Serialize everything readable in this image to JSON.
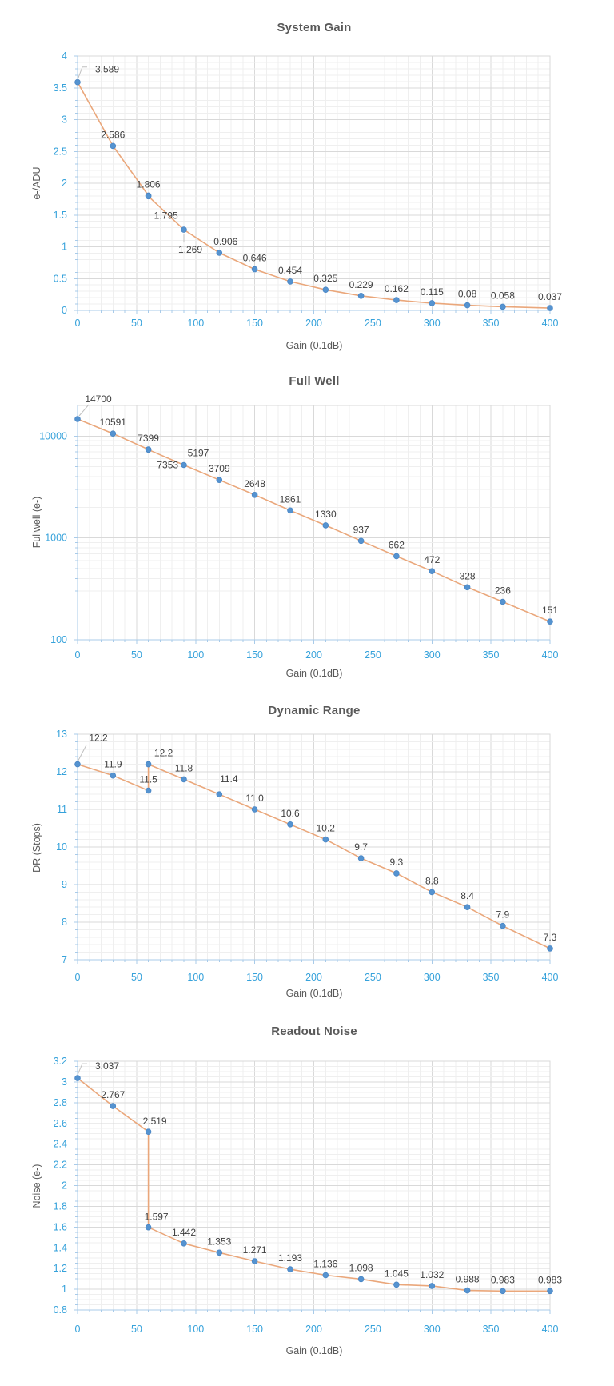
{
  "style": {
    "background": "#FFFFFF",
    "title_color": "#595959",
    "axis_title_color": "#595959",
    "tick_label_color": "#36A2DB",
    "data_label_color": "#404040",
    "line_color": "#EAA77B",
    "marker_color": "#5593D0",
    "marker_edge_color": "#4A86C5",
    "axis_line_color": "#A9CBE9",
    "major_grid_color": "#D9D9D9",
    "minor_grid_color": "#EFEFEF",
    "leader_line_color": "#BFBFBF"
  },
  "chart_data": [
    {
      "type": "line",
      "title": "System Gain",
      "xlabel": "Gain (0.1dB)",
      "ylabel": "e-/ADU",
      "x": [
        0,
        30,
        60,
        60,
        90,
        120,
        150,
        180,
        210,
        240,
        270,
        300,
        330,
        360,
        400
      ],
      "y": [
        3.589,
        2.586,
        1.806,
        1.795,
        1.269,
        0.906,
        0.646,
        0.454,
        0.325,
        0.229,
        0.162,
        0.115,
        0.08,
        0.058,
        0.037
      ],
      "point_labels": [
        "3.589",
        "2.586",
        "1.806",
        "1.795",
        "1.269",
        "0.906",
        "0.646",
        "0.454",
        "0.325",
        "0.229",
        "0.162",
        "0.115",
        "0.08",
        "0.058",
        "0.037"
      ],
      "xlim": [
        0,
        400
      ],
      "xtick_labels": [
        "0",
        "50",
        "100",
        "150",
        "200",
        "250",
        "300",
        "350",
        "400"
      ],
      "yscale": "linear",
      "ylim": [
        0,
        4
      ],
      "ytick_values": [
        0,
        0.5,
        1,
        1.5,
        2,
        2.5,
        3,
        3.5,
        4
      ],
      "ytick_labels": [
        "0",
        "0.5",
        "1",
        "1.5",
        "2",
        "2.5",
        "3",
        "3.5",
        "4"
      ],
      "minor_x_step": 10,
      "minor_y_step": 0.1,
      "grid": true,
      "legend": false,
      "markers": true
    },
    {
      "type": "line",
      "title": "Full Well",
      "xlabel": "Gain (0.1dB)",
      "ylabel": "Fullwell (e-)",
      "x": [
        0,
        30,
        60,
        60,
        90,
        120,
        150,
        180,
        210,
        240,
        270,
        300,
        330,
        360,
        400
      ],
      "y": [
        14700,
        10591,
        7399,
        7353,
        5197,
        3709,
        2648,
        1861,
        1330,
        937,
        662,
        472,
        328,
        236,
        151
      ],
      "point_labels": [
        "14700",
        "10591",
        "7399",
        "7353",
        "5197",
        "3709",
        "2648",
        "1861",
        "1330",
        "937",
        "662",
        "472",
        "328",
        "236",
        "151"
      ],
      "xlim": [
        0,
        400
      ],
      "xtick_labels": [
        "0",
        "50",
        "100",
        "150",
        "200",
        "250",
        "300",
        "350",
        "400"
      ],
      "yscale": "log",
      "ylim": [
        100,
        20000
      ],
      "ytick_values": [
        100,
        1000,
        10000
      ],
      "ytick_labels": [
        "100",
        "1000",
        "10000"
      ],
      "minor_x_step": 10,
      "minor_y_step": null,
      "grid": true,
      "legend": false,
      "markers": true
    },
    {
      "type": "line",
      "title": "Dynamic Range",
      "xlabel": "Gain (0.1dB)",
      "ylabel": "DR (Stops)",
      "x": [
        0,
        30,
        60,
        60,
        90,
        120,
        150,
        180,
        210,
        240,
        270,
        300,
        330,
        360,
        400
      ],
      "y": [
        12.2,
        11.9,
        11.5,
        12.2,
        11.8,
        11.4,
        11.0,
        10.6,
        10.2,
        9.7,
        9.3,
        8.8,
        8.4,
        7.9,
        7.3
      ],
      "point_labels": [
        "12.2",
        "11.9",
        "11.5",
        "12.2",
        "11.8",
        "11.4",
        "11.0",
        "10.6",
        "10.2",
        "9.7",
        "9.3",
        "8.8",
        "8.4",
        "7.9",
        "7.3"
      ],
      "xlim": [
        0,
        400
      ],
      "xtick_labels": [
        "0",
        "50",
        "100",
        "150",
        "200",
        "250",
        "300",
        "350",
        "400"
      ],
      "yscale": "linear",
      "ylim": [
        7,
        13
      ],
      "ytick_values": [
        7,
        8,
        9,
        10,
        11,
        12,
        13
      ],
      "ytick_labels": [
        "7",
        "8",
        "9",
        "10",
        "11",
        "12",
        "13"
      ],
      "minor_x_step": 10,
      "minor_y_step": 0.2,
      "grid": true,
      "legend": false,
      "markers": true
    },
    {
      "type": "line",
      "title": "Readout Noise",
      "xlabel": "Gain (0.1dB)",
      "ylabel": "Noise (e-)",
      "x": [
        0,
        30,
        60,
        60,
        90,
        120,
        150,
        180,
        210,
        240,
        270,
        300,
        330,
        360,
        400
      ],
      "y": [
        3.037,
        2.767,
        2.519,
        1.597,
        1.442,
        1.353,
        1.271,
        1.193,
        1.136,
        1.098,
        1.045,
        1.032,
        0.988,
        0.983,
        0.983
      ],
      "point_labels": [
        "3.037",
        "2.767",
        "2.519",
        "1.597",
        "1.442",
        "1.353",
        "1.271",
        "1.193",
        "1.136",
        "1.098",
        "1.045",
        "1.032",
        "0.988",
        "0.983",
        "0.983"
      ],
      "xlim": [
        0,
        400
      ],
      "xtick_labels": [
        "0",
        "50",
        "100",
        "150",
        "200",
        "250",
        "300",
        "350",
        "400"
      ],
      "yscale": "linear",
      "ylim": [
        0.8,
        3.2
      ],
      "ytick_values": [
        0.8,
        1,
        1.2,
        1.4,
        1.6,
        1.8,
        2,
        2.2,
        2.4,
        2.6,
        2.8,
        3,
        3.2
      ],
      "ytick_labels": [
        "0.8",
        "1",
        "1.2",
        "1.4",
        "1.6",
        "1.8",
        "2",
        "2.2",
        "2.4",
        "2.6",
        "2.8",
        "3",
        "3.2"
      ],
      "minor_x_step": 10,
      "minor_y_step": 0.05,
      "grid": true,
      "legend": false,
      "markers": true
    }
  ]
}
